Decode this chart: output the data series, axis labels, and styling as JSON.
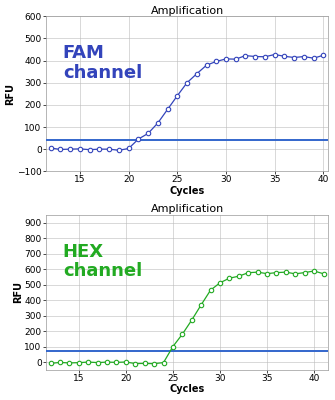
{
  "title": "Amplification",
  "xlabel": "Cycles",
  "ylabel": "RFU",
  "fam_label": "FAM\nchannel",
  "hex_label": "HEX\nchannel",
  "fam_color": "#3344bb",
  "hex_color": "#22aa22",
  "threshold_color": "#3366cc",
  "fam_threshold": 40,
  "hex_threshold": 75,
  "fam_ylim": [
    -100,
    600
  ],
  "hex_ylim": [
    -50,
    950
  ],
  "fam_yticks": [
    -100,
    0,
    100,
    200,
    300,
    400,
    500,
    600
  ],
  "hex_yticks": [
    0,
    100,
    200,
    300,
    400,
    500,
    600,
    700,
    800,
    900
  ],
  "fam_xlim": [
    11.5,
    40.5
  ],
  "hex_xlim": [
    11.5,
    41.5
  ],
  "fam_xticks": [
    15,
    20,
    25,
    30,
    35,
    40
  ],
  "hex_xticks": [
    15,
    20,
    25,
    30,
    35,
    40
  ],
  "bg_color": "#ffffff",
  "grid_color": "#bbbbbb",
  "fam_label_fontsize": 13,
  "hex_label_fontsize": 13,
  "title_fontsize": 8,
  "axis_label_fontsize": 7,
  "tick_fontsize": 6.5
}
